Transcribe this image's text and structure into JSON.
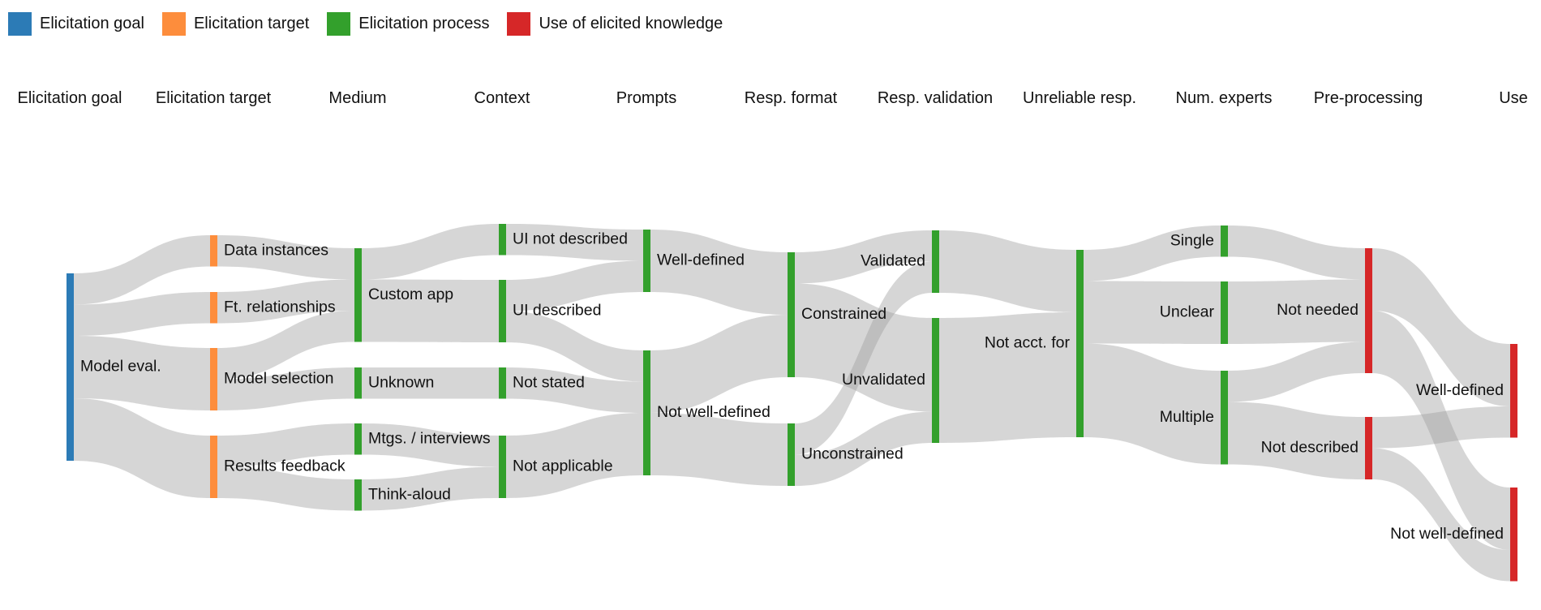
{
  "legend": [
    {
      "label": "Elicitation goal",
      "color": "#2c7bb6"
    },
    {
      "label": "Elicitation target",
      "color": "#fd8d3c"
    },
    {
      "label": "Elicitation process",
      "color": "#33a02c"
    },
    {
      "label": "Use of elicited knowledge",
      "color": "#d62728"
    }
  ],
  "columns": [
    "Elicitation goal",
    "Elicitation target",
    "Medium",
    "Context",
    "Prompts",
    "Resp. format",
    "Resp. validation",
    "Unreliable resp.",
    "Num. experts",
    "Pre-processing",
    "Use"
  ],
  "nodes": {
    "goal_model_eval": {
      "label": "Model eval.",
      "category": "goal"
    },
    "tgt_data_instances": {
      "label": "Data instances",
      "category": "target"
    },
    "tgt_ft_rel": {
      "label": "Ft. relationships",
      "category": "target"
    },
    "tgt_model_sel": {
      "label": "Model selection",
      "category": "target"
    },
    "tgt_results_fb": {
      "label": "Results feedback",
      "category": "target"
    },
    "med_custom_app": {
      "label": "Custom app",
      "category": "process"
    },
    "med_unknown": {
      "label": "Unknown",
      "category": "process"
    },
    "med_mtgs": {
      "label": "Mtgs. / interviews",
      "category": "process"
    },
    "med_think_aloud": {
      "label": "Think-aloud",
      "category": "process"
    },
    "ctx_ui_not_desc": {
      "label": "UI not described",
      "category": "process"
    },
    "ctx_ui_desc": {
      "label": "UI described",
      "category": "process"
    },
    "ctx_not_stated": {
      "label": "Not stated",
      "category": "process"
    },
    "ctx_not_applicable": {
      "label": "Not applicable",
      "category": "process"
    },
    "pr_well_def": {
      "label": "Well-defined",
      "category": "process"
    },
    "pr_not_well_def": {
      "label": "Not well-defined",
      "category": "process"
    },
    "rf_constrained": {
      "label": "Constrained",
      "category": "process"
    },
    "rf_unconstrained": {
      "label": "Unconstrained",
      "category": "process"
    },
    "rv_validated": {
      "label": "Validated",
      "category": "process"
    },
    "rv_unvalidated": {
      "label": "Unvalidated",
      "category": "process"
    },
    "ur_not_acct": {
      "label": "Not acct. for",
      "category": "process"
    },
    "ne_single": {
      "label": "Single",
      "category": "process"
    },
    "ne_unclear": {
      "label": "Unclear",
      "category": "process"
    },
    "ne_multiple": {
      "label": "Multiple",
      "category": "process"
    },
    "pp_not_needed": {
      "label": "Not needed",
      "category": "use"
    },
    "pp_not_described": {
      "label": "Not described",
      "category": "use"
    },
    "use_well_def": {
      "label": "Well-defined",
      "category": "use"
    },
    "use_not_well_def": {
      "label": "Not well-defined",
      "category": "use"
    }
  },
  "links": [
    {
      "source": "goal_model_eval",
      "target": "tgt_data_instances",
      "value": 1
    },
    {
      "source": "goal_model_eval",
      "target": "tgt_ft_rel",
      "value": 1
    },
    {
      "source": "goal_model_eval",
      "target": "tgt_model_sel",
      "value": 2
    },
    {
      "source": "goal_model_eval",
      "target": "tgt_results_fb",
      "value": 2
    },
    {
      "source": "tgt_data_instances",
      "target": "med_custom_app",
      "value": 1
    },
    {
      "source": "tgt_ft_rel",
      "target": "med_custom_app",
      "value": 1
    },
    {
      "source": "tgt_model_sel",
      "target": "med_custom_app",
      "value": 1
    },
    {
      "source": "tgt_model_sel",
      "target": "med_unknown",
      "value": 1
    },
    {
      "source": "tgt_results_fb",
      "target": "med_mtgs",
      "value": 1
    },
    {
      "source": "tgt_results_fb",
      "target": "med_think_aloud",
      "value": 1
    },
    {
      "source": "med_custom_app",
      "target": "ctx_ui_not_desc",
      "value": 1
    },
    {
      "source": "med_custom_app",
      "target": "ctx_ui_desc",
      "value": 2
    },
    {
      "source": "med_unknown",
      "target": "ctx_not_stated",
      "value": 1
    },
    {
      "source": "med_mtgs",
      "target": "ctx_not_applicable",
      "value": 1
    },
    {
      "source": "med_think_aloud",
      "target": "ctx_not_applicable",
      "value": 1
    },
    {
      "source": "ctx_ui_not_desc",
      "target": "pr_well_def",
      "value": 1
    },
    {
      "source": "ctx_ui_desc",
      "target": "pr_well_def",
      "value": 1
    },
    {
      "source": "ctx_ui_desc",
      "target": "pr_not_well_def",
      "value": 1
    },
    {
      "source": "ctx_not_stated",
      "target": "pr_not_well_def",
      "value": 1
    },
    {
      "source": "ctx_not_applicable",
      "target": "pr_not_well_def",
      "value": 2
    },
    {
      "source": "pr_well_def",
      "target": "rf_constrained",
      "value": 2
    },
    {
      "source": "pr_not_well_def",
      "target": "rf_constrained",
      "value": 2
    },
    {
      "source": "pr_not_well_def",
      "target": "rf_unconstrained",
      "value": 2
    },
    {
      "source": "rf_constrained",
      "target": "rv_validated",
      "value": 1
    },
    {
      "source": "rf_constrained",
      "target": "rv_unvalidated",
      "value": 3
    },
    {
      "source": "rf_unconstrained",
      "target": "rv_validated",
      "value": 1
    },
    {
      "source": "rf_unconstrained",
      "target": "rv_unvalidated",
      "value": 1
    },
    {
      "source": "rv_validated",
      "target": "ur_not_acct",
      "value": 2
    },
    {
      "source": "rv_unvalidated",
      "target": "ur_not_acct",
      "value": 4
    },
    {
      "source": "ur_not_acct",
      "target": "ne_single",
      "value": 1
    },
    {
      "source": "ur_not_acct",
      "target": "ne_unclear",
      "value": 2
    },
    {
      "source": "ur_not_acct",
      "target": "ne_multiple",
      "value": 3
    },
    {
      "source": "ne_single",
      "target": "pp_not_needed",
      "value": 1
    },
    {
      "source": "ne_unclear",
      "target": "pp_not_needed",
      "value": 2
    },
    {
      "source": "ne_multiple",
      "target": "pp_not_needed",
      "value": 1
    },
    {
      "source": "ne_multiple",
      "target": "pp_not_described",
      "value": 2
    },
    {
      "source": "pp_not_needed",
      "target": "use_well_def",
      "value": 2
    },
    {
      "source": "pp_not_needed",
      "target": "use_not_well_def",
      "value": 2
    },
    {
      "source": "pp_not_described",
      "target": "use_well_def",
      "value": 1
    },
    {
      "source": "pp_not_described",
      "target": "use_not_well_def",
      "value": 1
    }
  ]
}
